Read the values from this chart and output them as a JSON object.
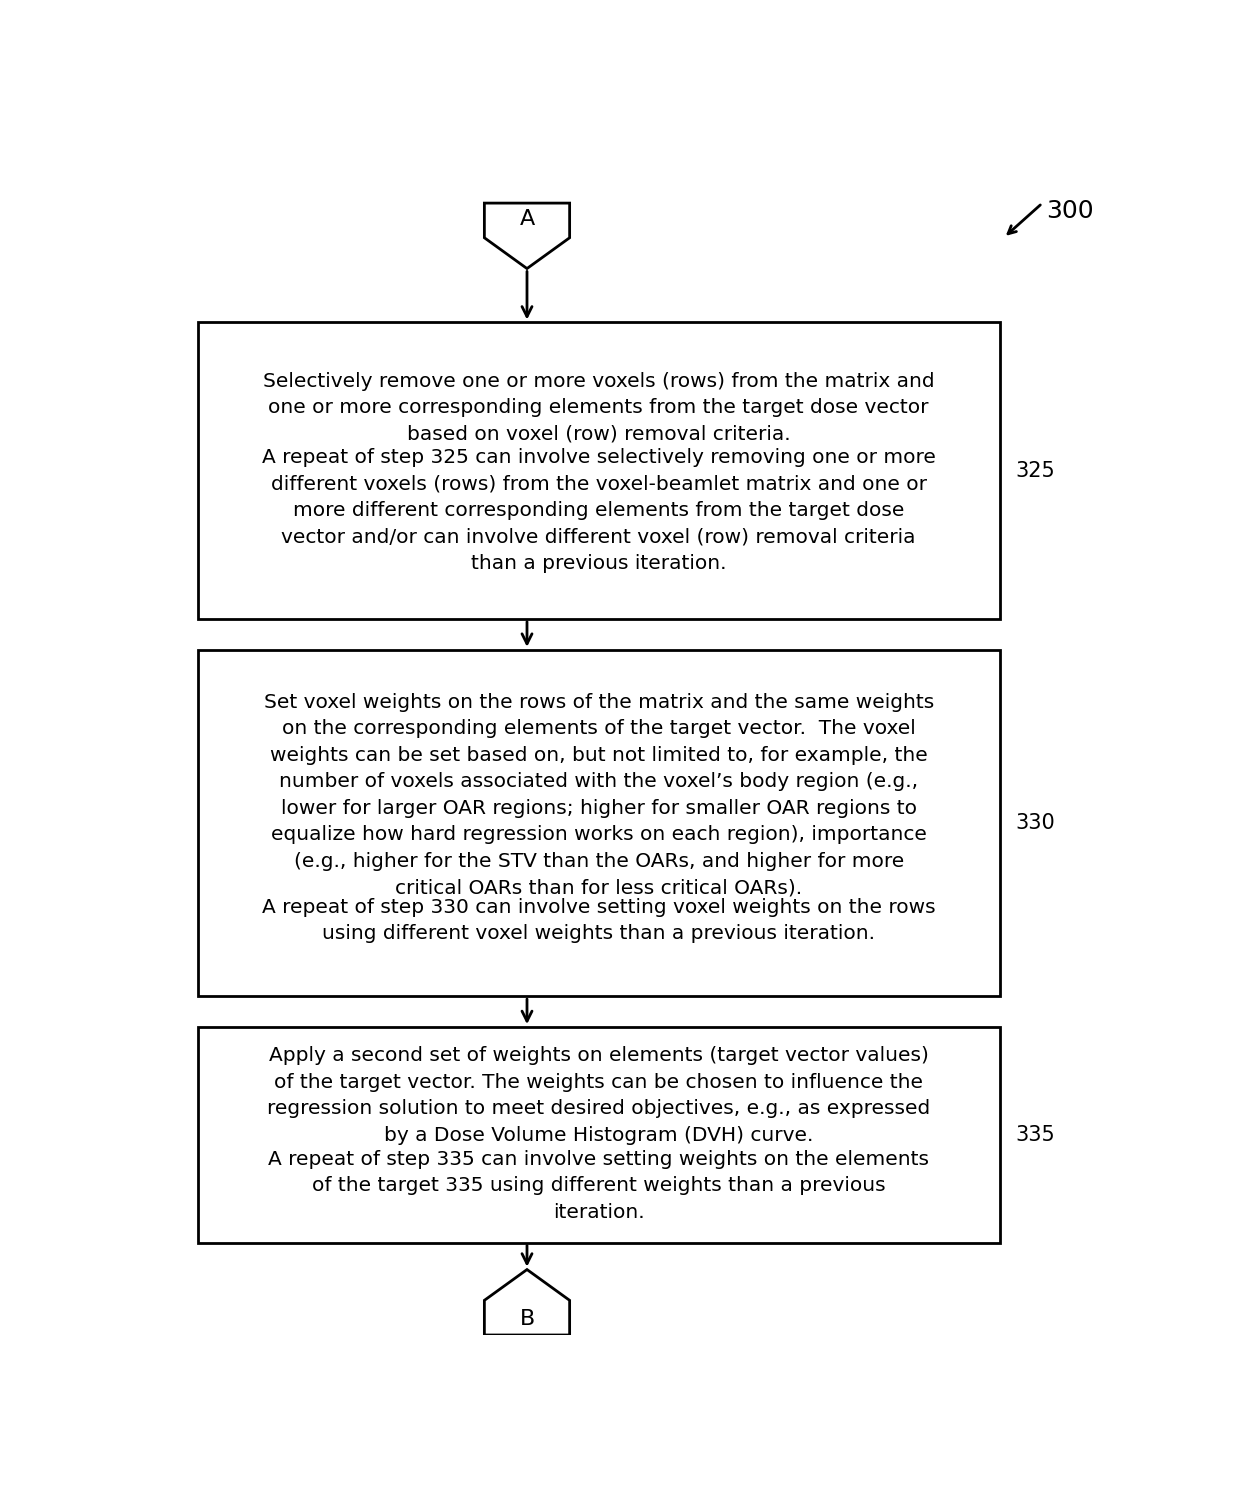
{
  "bg_color": "#ffffff",
  "text_color": "#000000",
  "box_border_color": "#000000",
  "box_fill_color": "#ffffff",
  "label_300": "300",
  "label_A": "A",
  "label_B": "B",
  "step_labels": [
    "325",
    "330",
    "335"
  ],
  "box_text_325_para1": "Selectively remove one or more voxels (rows) from the matrix and\none or more corresponding elements from the target dose vector\nbased on voxel (row) removal criteria.",
  "box_text_325_para2": "A repeat of step 325 can involve selectively removing one or more\ndifferent voxels (rows) from the voxel-beamlet matrix and one or\nmore different corresponding elements from the target dose\nvector and/or can involve different voxel (row) removal criteria\nthan a previous iteration.",
  "box_text_330_para1": "Set voxel weights on the rows of the matrix and the same weights\non the corresponding elements of the target vector.  The voxel\nweights can be set based on, but not limited to, for example, the\nnumber of voxels associated with the voxel’s body region (e.g.,\nlower for larger OAR regions; higher for smaller OAR regions to\nequalize how hard regression works on each region), importance\n(e.g., higher for the STV than the OARs, and higher for more\ncritical OARs than for less critical OARs).",
  "box_text_330_para2": "A repeat of step 330 can involve setting voxel weights on the rows\nusing different voxel weights than a previous iteration.",
  "box_text_335_para1": "Apply a second set of weights on elements (target vector values)\nof the target vector. The weights can be chosen to influence the\nregression solution to meet desired objectives, e.g., as expressed\nby a Dose Volume Histogram (DVH) curve.",
  "box_text_335_para2": "A repeat of step 335 can involve setting weights on the elements\nof the target 335 using different weights than a previous\niteration.",
  "font_size_box": 14.5,
  "font_size_label": 15,
  "font_size_300": 18,
  "font_size_AB": 16,
  "arrow_color": "#000000",
  "fig_width": 12.4,
  "fig_height": 15.0,
  "dpi": 100
}
